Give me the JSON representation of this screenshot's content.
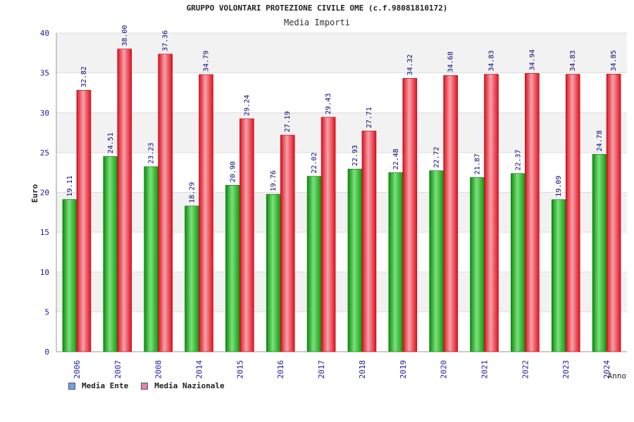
{
  "chart_data": {
    "type": "bar",
    "title": "GRUPPO VOLONTARI PROTEZIONE CIVILE OME (c.f.98081810172)",
    "subtitle": "Media Importi",
    "xlabel": "Anno",
    "ylabel": "Euro",
    "ylim": [
      0,
      40
    ],
    "yticks": [
      0,
      5,
      10,
      15,
      20,
      25,
      30,
      35,
      40
    ],
    "categories": [
      "2006",
      "2007",
      "2008",
      "2014",
      "2015",
      "2016",
      "2017",
      "2018",
      "2019",
      "2020",
      "2021",
      "2022",
      "2023",
      "2024"
    ],
    "series": [
      {
        "name": "Media Ente",
        "values": [
          19.11,
          24.51,
          23.23,
          18.29,
          20.9,
          19.76,
          22.02,
          22.93,
          22.48,
          22.72,
          21.87,
          22.37,
          19.09,
          24.78
        ],
        "labels": [
          "19.11",
          "24.51",
          "23.23",
          "18.29",
          "20.90",
          "19.76",
          "22.02",
          "22.93",
          "22.48",
          "22.72",
          "21.87",
          "22.37",
          "19.09",
          "24.78"
        ],
        "bar_color": "#1ec21e",
        "legend_color": "#6fa0e8"
      },
      {
        "name": "Media Nazionale",
        "values": [
          32.82,
          38.0,
          37.36,
          34.79,
          29.24,
          27.19,
          29.43,
          27.71,
          34.32,
          34.68,
          34.83,
          34.94,
          34.83,
          34.85
        ],
        "labels": [
          "32.82",
          "38.00",
          "37.36",
          "34.79",
          "29.24",
          "27.19",
          "29.43",
          "27.71",
          "34.32",
          "34.68",
          "34.83",
          "34.94",
          "34.83",
          "34.85"
        ],
        "bar_color": "#ee1c2e",
        "legend_color": "#e084b4"
      }
    ],
    "grid": true,
    "legend_position": "bottom-left"
  }
}
